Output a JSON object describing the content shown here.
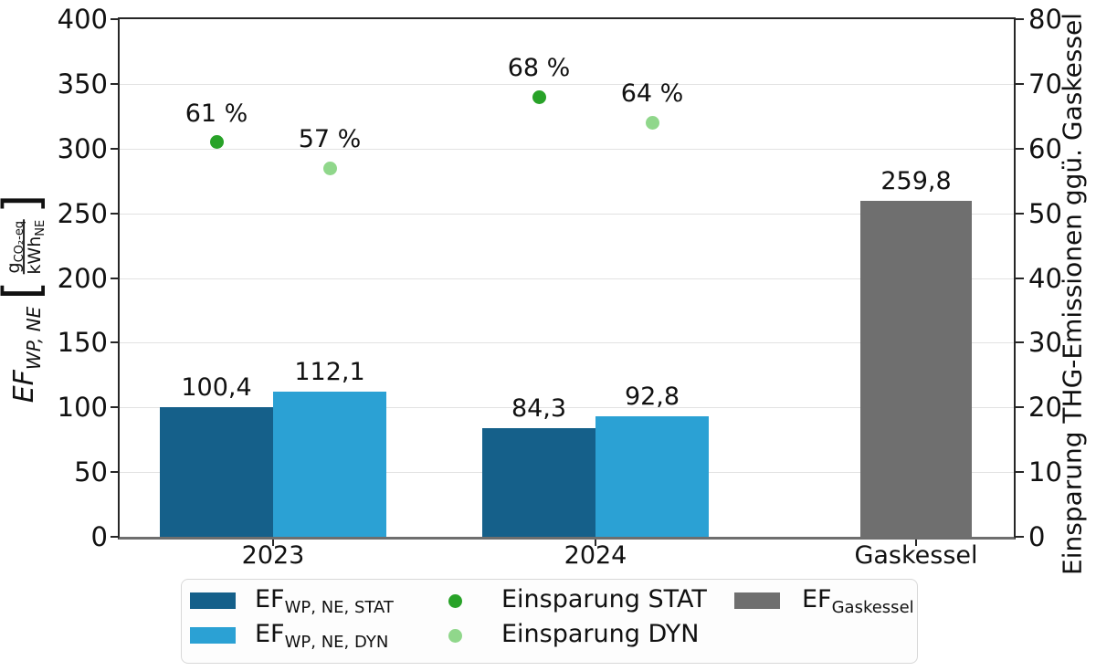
{
  "chart_data": {
    "type": "bar",
    "categories": [
      "2023",
      "2024",
      "Gaskessel"
    ],
    "bar_series": [
      {
        "name": "EF_WP,NE,STAT",
        "color": "#15608a",
        "values": [
          100.4,
          84.3,
          null
        ],
        "value_labels": [
          "100,4",
          "84,3",
          null
        ]
      },
      {
        "name": "EF_WP,NE,DYN",
        "color": "#2ba1d4",
        "values": [
          112.1,
          92.8,
          null
        ],
        "value_labels": [
          "112,1",
          "92,8",
          null
        ]
      },
      {
        "name": "EF_Gaskessel",
        "color": "#6f6f6f",
        "values": [
          null,
          null,
          259.8
        ],
        "value_labels": [
          null,
          null,
          "259,8"
        ]
      }
    ],
    "scatter_series": [
      {
        "name": "Einsparung STAT",
        "color": "#28a228",
        "axis": "right",
        "values_percent": [
          61,
          68,
          null
        ],
        "point_labels": [
          "61 %",
          "68 %",
          null
        ]
      },
      {
        "name": "Einsparung DYN",
        "color": "#90d78b",
        "axis": "right",
        "values_percent": [
          57,
          64,
          null
        ],
        "point_labels": [
          "57 %",
          "64 %",
          null
        ]
      }
    ],
    "left_axis": {
      "range": [
        0,
        400
      ],
      "ticks": [
        0,
        50,
        100,
        150,
        200,
        250,
        300,
        350,
        400
      ],
      "label_text": "EF_WP,NE [g_CO2-eq / kWh_NE]",
      "label_parts": {
        "main": "EF",
        "sub": "WP, NE",
        "bracket_open": "[",
        "bracket_close": "]",
        "unit_numerator": "g",
        "unit_numerator_sub": "CO₂-eq",
        "unit_denominator": "kWh",
        "unit_denominator_sub": "NE"
      }
    },
    "right_axis": {
      "range": [
        0,
        80
      ],
      "ticks": [
        0,
        10,
        20,
        30,
        40,
        50,
        60,
        70,
        80
      ],
      "label": "Einsparung THG-Emissionen ggü. Gaskessel"
    },
    "grid": "horizontal"
  },
  "legend": {
    "entries": [
      {
        "type": "patch",
        "color": "#15608a",
        "main": "EF",
        "sub": "WP, NE, STAT"
      },
      {
        "type": "patch",
        "color": "#2ba1d4",
        "main": "EF",
        "sub": "WP, NE, DYN"
      },
      {
        "type": "dot",
        "color": "#28a228",
        "main": "Einsparung STAT",
        "sub": ""
      },
      {
        "type": "dot",
        "color": "#90d78b",
        "main": "Einsparung DYN",
        "sub": ""
      },
      {
        "type": "patch",
        "color": "#6f6f6f",
        "main": "EF",
        "sub": "Gaskessel"
      }
    ]
  }
}
